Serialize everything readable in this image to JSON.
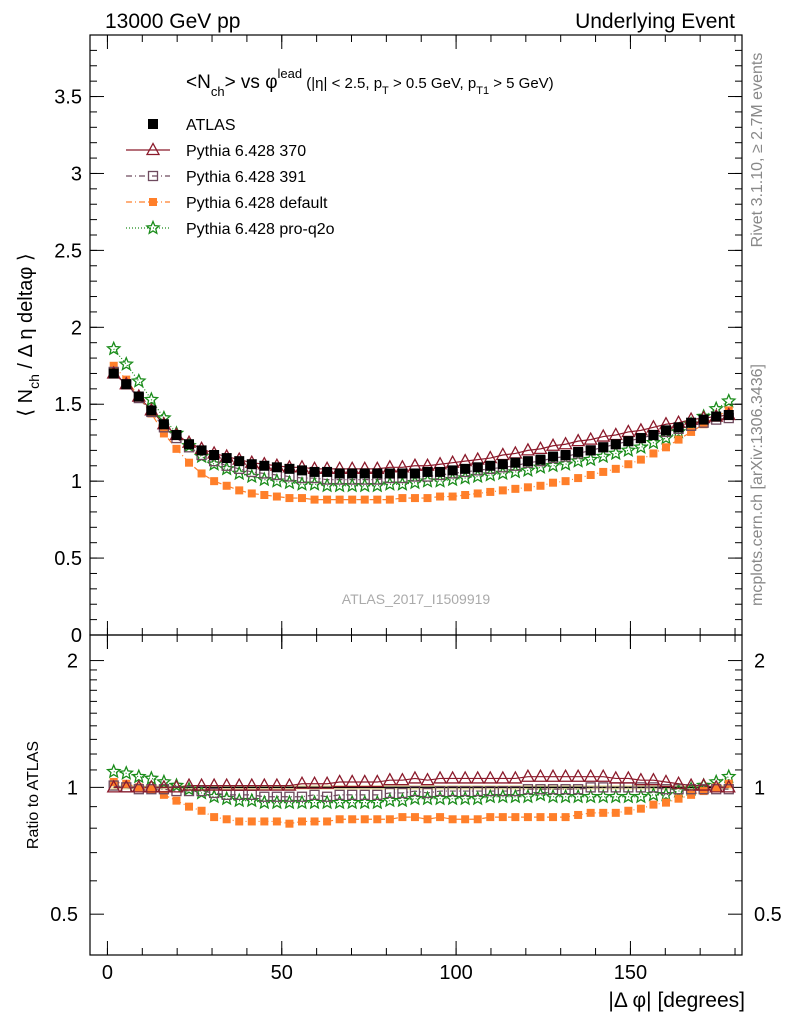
{
  "header": {
    "left": "13000 GeV pp",
    "right": "Underlying Event"
  },
  "title_parts": {
    "a": "<N",
    "b": "ch",
    "c": "> vs ",
    "d": "φ",
    "e": "lead",
    "f": " (|η| < 2.5, p",
    "g": "T",
    "h": " > 0.5 GeV, p",
    "i": "T1",
    "j": " > 5 GeV)"
  },
  "side_labels": {
    "rivet": "Rivet 3.1.10, ≥ 2.7M events",
    "mcplots": "mcplots.cern.ch [arXiv:1306.3436]"
  },
  "watermark": "ATLAS_2017_I1509919",
  "ylabel_parts": {
    "a": "⟨ N",
    "b": "ch",
    "c": " / Δ η deltaφ ⟩"
  },
  "ratio_ylabel": "Ratio to ATLAS",
  "xlabel": "|Δ φ| [degrees]",
  "chart_data": [
    {
      "type": "scatter",
      "panel": "main",
      "x": [
        1.8,
        5.4,
        9.0,
        12.6,
        16.2,
        19.8,
        23.4,
        27.0,
        30.6,
        34.2,
        37.8,
        41.4,
        45.0,
        48.6,
        52.2,
        55.8,
        59.4,
        63.0,
        66.6,
        70.2,
        73.8,
        77.4,
        81.0,
        84.6,
        88.2,
        91.8,
        95.4,
        99.0,
        102.6,
        106.2,
        109.8,
        113.4,
        117.0,
        120.6,
        124.2,
        127.8,
        131.4,
        135.0,
        138.6,
        142.2,
        145.8,
        149.4,
        153.0,
        156.6,
        160.2,
        163.8,
        167.4,
        171.0,
        174.6,
        178.2
      ],
      "xlim": [
        -5,
        182
      ],
      "ylim": [
        0,
        3.9
      ],
      "y_ticks": [
        0,
        0.5,
        1,
        1.5,
        2,
        2.5,
        3,
        3.5
      ],
      "x_ticks": [
        0,
        50,
        100,
        150
      ],
      "legend_position": "top-left",
      "series": [
        {
          "name": "ATLAS",
          "color": "#000000",
          "marker": "filled-square",
          "values": [
            1.7,
            1.63,
            1.55,
            1.46,
            1.37,
            1.3,
            1.24,
            1.2,
            1.17,
            1.15,
            1.13,
            1.11,
            1.1,
            1.09,
            1.08,
            1.07,
            1.06,
            1.06,
            1.05,
            1.05,
            1.05,
            1.05,
            1.05,
            1.05,
            1.05,
            1.06,
            1.06,
            1.07,
            1.08,
            1.09,
            1.1,
            1.11,
            1.12,
            1.13,
            1.14,
            1.16,
            1.17,
            1.19,
            1.2,
            1.22,
            1.24,
            1.26,
            1.28,
            1.3,
            1.33,
            1.35,
            1.38,
            1.4,
            1.42,
            1.43
          ]
        },
        {
          "name": "Pythia 6.428 370",
          "color": "#8b1a2b",
          "marker": "open-triangle",
          "values": [
            1.7,
            1.63,
            1.55,
            1.46,
            1.37,
            1.3,
            1.25,
            1.21,
            1.18,
            1.16,
            1.14,
            1.12,
            1.11,
            1.1,
            1.09,
            1.09,
            1.08,
            1.08,
            1.08,
            1.08,
            1.08,
            1.08,
            1.09,
            1.09,
            1.1,
            1.1,
            1.11,
            1.12,
            1.13,
            1.14,
            1.15,
            1.17,
            1.18,
            1.2,
            1.21,
            1.23,
            1.24,
            1.26,
            1.27,
            1.29,
            1.3,
            1.32,
            1.33,
            1.35,
            1.37,
            1.38,
            1.4,
            1.41,
            1.42,
            1.43
          ]
        },
        {
          "name": "Pythia 6.428 391",
          "color": "#6e4a5e",
          "marker": "open-square",
          "values": [
            1.71,
            1.63,
            1.54,
            1.45,
            1.35,
            1.28,
            1.22,
            1.17,
            1.13,
            1.1,
            1.08,
            1.06,
            1.05,
            1.04,
            1.03,
            1.02,
            1.02,
            1.01,
            1.01,
            1.01,
            1.01,
            1.01,
            1.02,
            1.02,
            1.03,
            1.03,
            1.04,
            1.05,
            1.06,
            1.07,
            1.08,
            1.09,
            1.1,
            1.12,
            1.13,
            1.15,
            1.16,
            1.18,
            1.2,
            1.22,
            1.24,
            1.26,
            1.28,
            1.3,
            1.32,
            1.34,
            1.36,
            1.38,
            1.4,
            1.41
          ]
        },
        {
          "name": "Pythia 6.428 default",
          "color": "#ff7f2a",
          "marker": "filled-square-small",
          "values": [
            1.75,
            1.66,
            1.55,
            1.44,
            1.31,
            1.21,
            1.12,
            1.05,
            1.0,
            0.97,
            0.94,
            0.92,
            0.91,
            0.9,
            0.89,
            0.89,
            0.88,
            0.88,
            0.88,
            0.88,
            0.88,
            0.88,
            0.88,
            0.89,
            0.89,
            0.89,
            0.9,
            0.9,
            0.91,
            0.92,
            0.93,
            0.94,
            0.95,
            0.96,
            0.97,
            0.99,
            1.0,
            1.02,
            1.04,
            1.06,
            1.08,
            1.11,
            1.14,
            1.18,
            1.22,
            1.27,
            1.32,
            1.37,
            1.42,
            1.46
          ]
        },
        {
          "name": "Pythia 6.428 pro-q2o",
          "color": "#1a8c1a",
          "marker": "open-star",
          "values": [
            1.86,
            1.76,
            1.65,
            1.53,
            1.41,
            1.31,
            1.23,
            1.16,
            1.11,
            1.08,
            1.05,
            1.03,
            1.01,
            1.0,
            0.99,
            0.98,
            0.98,
            0.97,
            0.97,
            0.97,
            0.97,
            0.97,
            0.98,
            0.98,
            0.99,
            1.0,
            1.0,
            1.01,
            1.02,
            1.03,
            1.04,
            1.05,
            1.06,
            1.07,
            1.09,
            1.1,
            1.11,
            1.13,
            1.14,
            1.16,
            1.18,
            1.2,
            1.22,
            1.25,
            1.28,
            1.32,
            1.37,
            1.42,
            1.47,
            1.52
          ]
        }
      ]
    },
    {
      "type": "scatter",
      "panel": "ratio",
      "x": [
        1.8,
        5.4,
        9.0,
        12.6,
        16.2,
        19.8,
        23.4,
        27.0,
        30.6,
        34.2,
        37.8,
        41.4,
        45.0,
        48.6,
        52.2,
        55.8,
        59.4,
        63.0,
        66.6,
        70.2,
        73.8,
        77.4,
        81.0,
        84.6,
        88.2,
        91.8,
        95.4,
        99.0,
        102.6,
        106.2,
        109.8,
        113.4,
        117.0,
        120.6,
        124.2,
        127.8,
        131.4,
        135.0,
        138.6,
        142.2,
        145.8,
        149.4,
        153.0,
        156.6,
        160.2,
        163.8,
        167.4,
        171.0,
        174.6,
        178.2
      ],
      "xlim": [
        -5,
        182
      ],
      "ylim": [
        0.4,
        2.3
      ],
      "y_ticks": [
        0.5,
        1,
        2
      ],
      "log_y": true,
      "series": [
        {
          "name": "Pythia 6.428 370",
          "color": "#8b1a2b",
          "marker": "open-triangle",
          "values": [
            1.0,
            1.0,
            1.0,
            1.0,
            1.0,
            1.0,
            1.01,
            1.01,
            1.01,
            1.01,
            1.01,
            1.01,
            1.01,
            1.01,
            1.01,
            1.02,
            1.02,
            1.02,
            1.03,
            1.03,
            1.03,
            1.03,
            1.04,
            1.04,
            1.05,
            1.04,
            1.05,
            1.05,
            1.05,
            1.05,
            1.05,
            1.05,
            1.05,
            1.06,
            1.06,
            1.06,
            1.06,
            1.06,
            1.06,
            1.06,
            1.05,
            1.05,
            1.04,
            1.04,
            1.03,
            1.02,
            1.01,
            1.01,
            1.0,
            1.0
          ]
        },
        {
          "name": "Pythia 6.428 391",
          "color": "#6e4a5e",
          "marker": "open-square",
          "values": [
            1.01,
            1.0,
            0.99,
            0.99,
            0.99,
            0.98,
            0.98,
            0.98,
            0.97,
            0.96,
            0.96,
            0.96,
            0.95,
            0.95,
            0.95,
            0.95,
            0.96,
            0.95,
            0.96,
            0.96,
            0.96,
            0.96,
            0.97,
            0.97,
            0.98,
            0.97,
            0.98,
            0.98,
            0.98,
            0.98,
            0.98,
            0.98,
            0.98,
            0.99,
            0.99,
            0.99,
            0.99,
            0.99,
            1.0,
            1.0,
            1.0,
            1.0,
            1.0,
            1.0,
            0.99,
            0.99,
            0.99,
            0.99,
            0.99,
            0.99
          ]
        },
        {
          "name": "Pythia 6.428 default",
          "color": "#ff7f2a",
          "marker": "filled-square-small",
          "values": [
            1.03,
            1.02,
            1.0,
            0.99,
            0.96,
            0.93,
            0.9,
            0.88,
            0.85,
            0.84,
            0.83,
            0.83,
            0.83,
            0.83,
            0.82,
            0.83,
            0.83,
            0.83,
            0.84,
            0.84,
            0.84,
            0.84,
            0.84,
            0.85,
            0.85,
            0.84,
            0.85,
            0.84,
            0.84,
            0.84,
            0.85,
            0.85,
            0.85,
            0.85,
            0.85,
            0.85,
            0.85,
            0.86,
            0.87,
            0.87,
            0.87,
            0.88,
            0.89,
            0.91,
            0.92,
            0.94,
            0.96,
            0.98,
            1.0,
            1.02
          ]
        },
        {
          "name": "Pythia 6.428 pro-q2o",
          "color": "#1a8c1a",
          "marker": "open-star",
          "values": [
            1.09,
            1.08,
            1.06,
            1.05,
            1.03,
            1.01,
            0.99,
            0.97,
            0.95,
            0.94,
            0.93,
            0.93,
            0.92,
            0.92,
            0.92,
            0.92,
            0.92,
            0.92,
            0.92,
            0.92,
            0.92,
            0.92,
            0.93,
            0.93,
            0.94,
            0.94,
            0.94,
            0.94,
            0.94,
            0.94,
            0.95,
            0.95,
            0.95,
            0.95,
            0.96,
            0.95,
            0.95,
            0.95,
            0.95,
            0.95,
            0.95,
            0.95,
            0.95,
            0.96,
            0.96,
            0.98,
            0.99,
            1.01,
            1.03,
            1.06
          ]
        }
      ]
    }
  ]
}
